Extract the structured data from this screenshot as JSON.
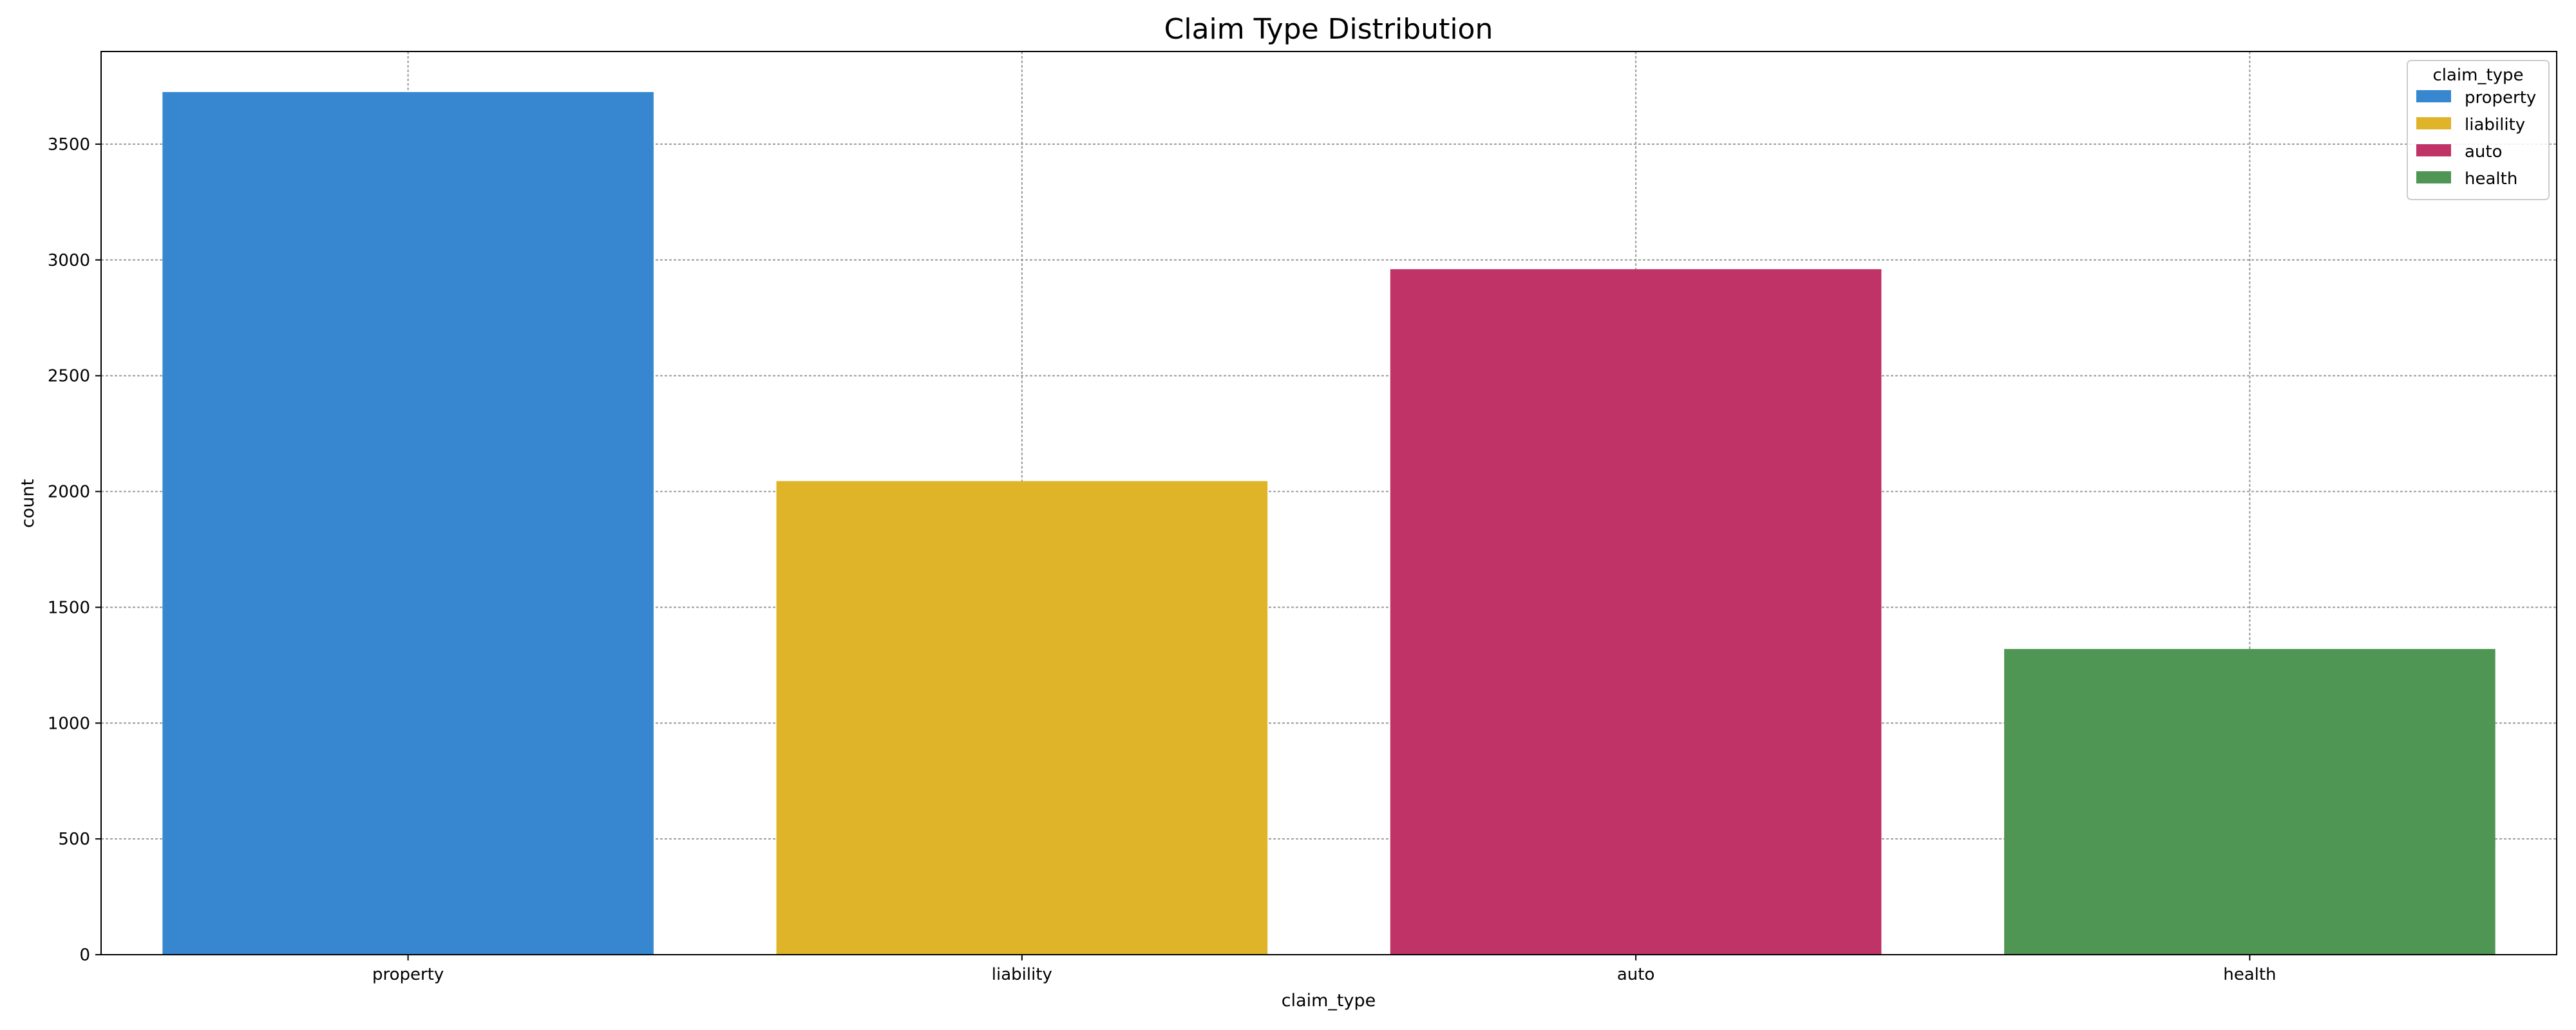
{
  "chart_data": {
    "type": "bar",
    "title": "Claim Type Distribution",
    "xlabel": "claim_type",
    "ylabel": "count",
    "categories": [
      "property",
      "liability",
      "auto",
      "health"
    ],
    "values": [
      3725,
      2045,
      2960,
      1320
    ],
    "colors": [
      "#3787d0",
      "#e0b428",
      "#c03366",
      "#4f9553"
    ],
    "ylim": [
      0,
      3900
    ],
    "yticks": [
      0,
      500,
      1000,
      1500,
      2000,
      2500,
      3000,
      3500
    ],
    "grid": true,
    "legend": {
      "title": "claim_type",
      "position": "top-right",
      "entries": [
        "property",
        "liability",
        "auto",
        "health"
      ]
    }
  }
}
